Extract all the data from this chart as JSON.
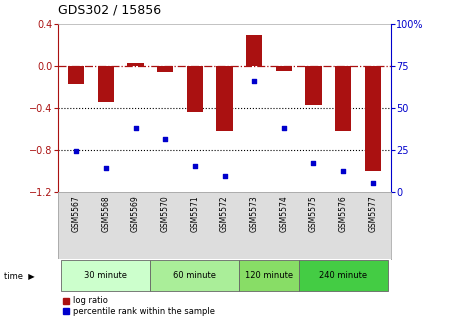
{
  "title": "GDS302 / 15856",
  "samples": [
    "GSM5567",
    "GSM5568",
    "GSM5569",
    "GSM5570",
    "GSM5571",
    "GSM5572",
    "GSM5573",
    "GSM5574",
    "GSM5575",
    "GSM5576",
    "GSM5577"
  ],
  "log_ratio": [
    -0.18,
    -0.35,
    0.02,
    -0.06,
    -0.44,
    -0.62,
    0.29,
    -0.05,
    -0.38,
    -0.62,
    -1.0
  ],
  "percentile": [
    24,
    14,
    38,
    31,
    15,
    9,
    66,
    38,
    17,
    12,
    5
  ],
  "bar_color": "#aa1111",
  "dot_color": "#0000cc",
  "left_ylim": [
    -1.2,
    0.4
  ],
  "right_ylim": [
    0,
    100
  ],
  "left_yticks": [
    0.4,
    0.0,
    -0.4,
    -0.8,
    -1.2
  ],
  "right_yticks": [
    100,
    75,
    50,
    25,
    0
  ],
  "hline_y0": 0.0,
  "hline_dotted1": -0.4,
  "hline_dotted2": -0.8,
  "time_groups": [
    {
      "label": "30 minute",
      "start": 0,
      "end": 3,
      "color": "#ccffcc"
    },
    {
      "label": "60 minute",
      "start": 3,
      "end": 6,
      "color": "#aaee99"
    },
    {
      "label": "120 minute",
      "start": 6,
      "end": 8,
      "color": "#88dd66"
    },
    {
      "label": "240 minute",
      "start": 8,
      "end": 11,
      "color": "#44cc44"
    }
  ],
  "bg_color": "#ffffff",
  "plot_bg": "#ffffff",
  "time_label": "time",
  "legend_log": "log ratio",
  "legend_pct": "percentile rank within the sample"
}
